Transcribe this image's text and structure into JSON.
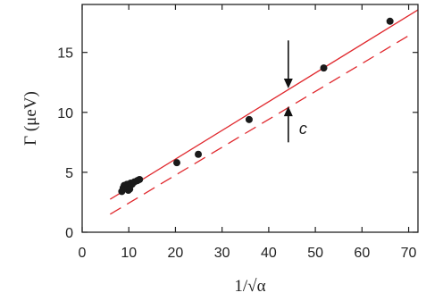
{
  "chart_data": {
    "type": "scatter",
    "xlabel": "1/√α",
    "ylabel": "Γ (μeV)",
    "xlim": [
      0,
      72
    ],
    "ylim": [
      0,
      19
    ],
    "xticks": [
      0,
      10,
      20,
      30,
      40,
      50,
      60,
      70
    ],
    "yticks": [
      0,
      5,
      10,
      15
    ],
    "grid": false,
    "series": [
      {
        "kind": "points",
        "x": [
          8.5,
          8.8,
          9.0,
          9.4,
          9.6,
          9.9,
          10.2,
          10.4,
          10.7,
          11.2,
          11.8,
          12.3,
          20.3,
          24.9,
          35.8,
          51.8,
          66.0
        ],
        "y": [
          3.4,
          3.7,
          3.9,
          3.8,
          4.0,
          3.5,
          3.6,
          4.1,
          4.0,
          4.2,
          4.3,
          4.4,
          5.8,
          6.5,
          9.4,
          13.7,
          17.6
        ]
      },
      {
        "kind": "solid-line",
        "color": "#e0282d",
        "x": [
          6,
          72
        ],
        "y": [
          2.75,
          18.55
        ]
      },
      {
        "kind": "dashed-line",
        "color": "#e0282d",
        "x": [
          6,
          70
        ],
        "y": [
          1.5,
          16.4
        ]
      }
    ],
    "annotations": [
      {
        "text": "c",
        "x": 44.2,
        "arrow_down_from": 16.0,
        "arrow_down_to": 12.0,
        "arrow_up_from": 7.5,
        "arrow_up_to": 10.5
      }
    ]
  }
}
